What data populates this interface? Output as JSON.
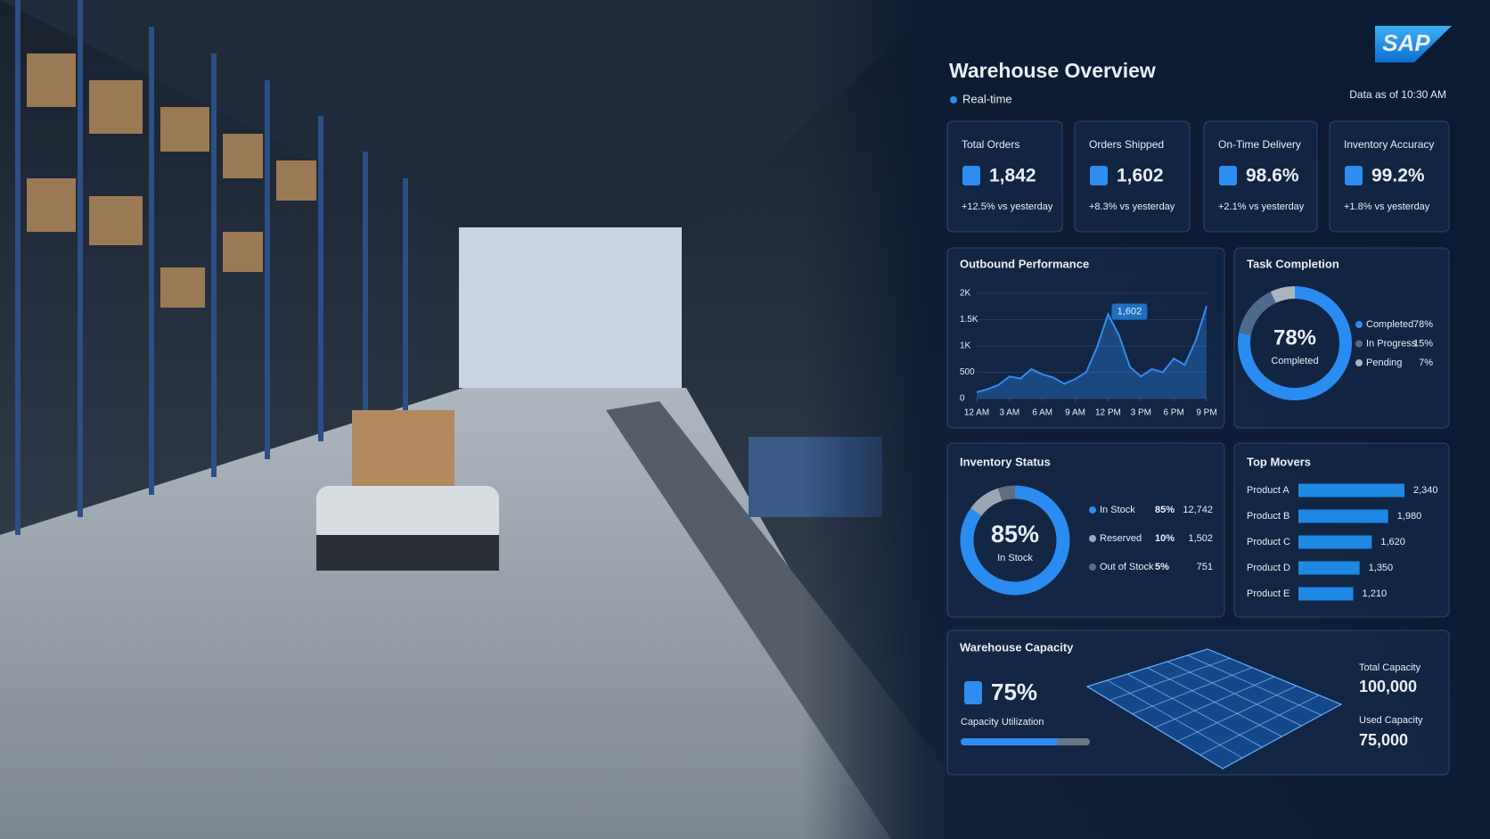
{
  "brand": "SAP",
  "header": {
    "title": "Warehouse Overview",
    "status": "Real-time",
    "timestamp": "Data as of 10:30 AM"
  },
  "kpis": [
    {
      "label": "Total Orders",
      "value": "1,842",
      "change": "+12.5% vs yesterday"
    },
    {
      "label": "Orders Shipped",
      "value": "1,602",
      "change": "+8.3% vs yesterday"
    },
    {
      "label": "On-Time Delivery",
      "value": "98.6%",
      "change": "+2.1% vs yesterday"
    },
    {
      "label": "Inventory Accuracy",
      "value": "99.2%",
      "change": "+1.8% vs yesterday"
    }
  ],
  "chart_data": [
    {
      "type": "line",
      "title": "Outbound Performance",
      "x": [
        0,
        1,
        2,
        3,
        4,
        5,
        6,
        7,
        8,
        9,
        10,
        11,
        12,
        13,
        14,
        15,
        16,
        17,
        18,
        19,
        20,
        21
      ],
      "values": [
        120,
        180,
        260,
        420,
        380,
        560,
        460,
        400,
        280,
        370,
        500,
        980,
        1602,
        1200,
        600,
        420,
        560,
        500,
        760,
        640,
        1100,
        1760
      ],
      "value_labels": [
        null,
        null,
        null,
        null,
        null,
        null,
        null,
        null,
        null,
        null,
        null,
        null,
        "1,602",
        null,
        null,
        null,
        null,
        null,
        null,
        null,
        null,
        null
      ],
      "xlim": [
        0,
        21
      ],
      "xticks": [
        {
          "value": 0,
          "label": "12 AM"
        },
        {
          "value": 3,
          "label": "3 AM"
        },
        {
          "value": 6,
          "label": "6 AM"
        },
        {
          "value": 9,
          "label": "9 AM"
        },
        {
          "value": 12,
          "label": "12 PM"
        },
        {
          "value": 15,
          "label": "3 PM"
        },
        {
          "value": 18,
          "label": "6 PM"
        },
        {
          "value": 21,
          "label": "9 PM"
        }
      ],
      "ylim": [
        0,
        2000
      ],
      "yticks": [
        0,
        500,
        {
          "value": 1000,
          "label": "1K"
        },
        {
          "value": 1500,
          "label": "1.5K"
        },
        {
          "value": 2000,
          "label": "2K"
        }
      ],
      "color": "#2f8cf0",
      "grid": true
    },
    {
      "type": "pie",
      "title": "Task Completion",
      "categories": [
        "Completed",
        "In Progress",
        "Pending"
      ],
      "values": [
        78,
        15,
        7
      ],
      "value_labels": [
        "78%",
        "15%",
        "7%"
      ],
      "colors": [
        "#2a8cf0",
        "#4d6b8c",
        "#aab4bf"
      ]
    },
    {
      "type": "pie",
      "title": "Inventory Status",
      "categories": [
        "In Stock",
        "Reserved",
        "Out of Stock"
      ],
      "values": [
        85,
        10,
        5
      ],
      "value_labels": [
        "85%",
        "10%",
        "5%"
      ],
      "counts": [
        "12,742",
        "1,502",
        "751"
      ],
      "colors": [
        "#2a8cf0",
        "#9aa6b4",
        "#5f6d7d"
      ]
    },
    {
      "type": "bar",
      "title": "Top Movers",
      "categories": [
        "Product A",
        "Product B",
        "Product C",
        "Product D",
        "Product E"
      ],
      "values": [
        2340,
        1980,
        1620,
        1350,
        1210
      ],
      "value_labels": [
        "2,340",
        "1,980",
        "1,620",
        "1,350",
        "1,210"
      ],
      "color": "#1e88e5"
    }
  ],
  "capacity": {
    "title": "Warehouse Capacity",
    "utilization": 75,
    "utilization_label": "75%",
    "utilization_caption": "Capacity Utilization",
    "total_label": "Total Capacity",
    "total": "100,000",
    "used_label": "Used Capacity",
    "used": "75,000"
  }
}
